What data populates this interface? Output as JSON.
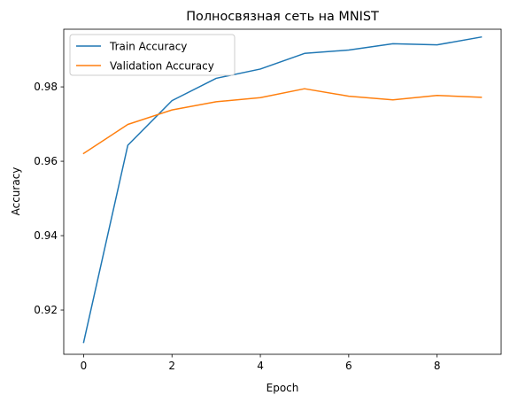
{
  "chart_data": {
    "type": "line",
    "title": "Полносвязная сеть на MNIST",
    "xlabel": "Epoch",
    "ylabel": "Accuracy",
    "x": [
      0,
      1,
      2,
      3,
      4,
      5,
      6,
      7,
      8,
      9
    ],
    "xlim": [
      -0.45,
      9.45
    ],
    "ylim": [
      0.9081,
      0.9955
    ],
    "xticks": [
      0,
      2,
      4,
      6,
      8
    ],
    "yticks": [
      0.92,
      0.94,
      0.96,
      0.98
    ],
    "ytick_labels": [
      "0.92",
      "0.94",
      "0.96",
      "0.98"
    ],
    "grid": false,
    "legend_position": "upper-left",
    "series": [
      {
        "name": "Train Accuracy",
        "color": "#1f77b4",
        "values": [
          0.9113,
          0.9643,
          0.9763,
          0.9823,
          0.9848,
          0.989,
          0.9899,
          0.9916,
          0.9913,
          0.9934
        ]
      },
      {
        "name": "Validation Accuracy",
        "color": "#ff7f0e",
        "values": [
          0.9621,
          0.9699,
          0.9738,
          0.976,
          0.9771,
          0.9795,
          0.9775,
          0.9765,
          0.9777,
          0.9772
        ]
      }
    ]
  }
}
